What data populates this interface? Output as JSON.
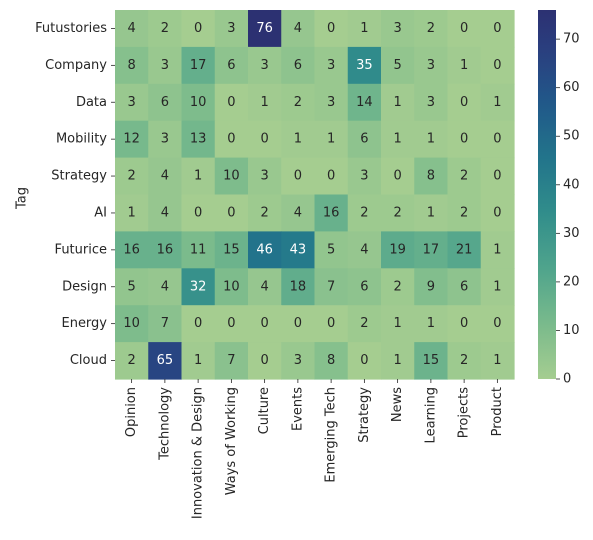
{
  "chart_data": {
    "type": "heatmap",
    "title": "",
    "xlabel": "",
    "ylabel": "Tag",
    "rows": [
      "Futustories",
      "Company",
      "Data",
      "Mobility",
      "Strategy",
      "AI",
      "Futurice",
      "Design",
      "Energy",
      "Cloud"
    ],
    "columns": [
      "Opinion",
      "Technology",
      "Innovation & Design",
      "Ways of Working",
      "Culture",
      "Events",
      "Emerging Tech",
      "Strategy",
      "News",
      "Learning",
      "Projects",
      "Product"
    ],
    "values": [
      [
        4,
        2,
        0,
        3,
        76,
        4,
        0,
        1,
        3,
        2,
        0,
        0
      ],
      [
        8,
        3,
        17,
        6,
        3,
        6,
        3,
        35,
        5,
        3,
        1,
        0
      ],
      [
        3,
        6,
        10,
        0,
        1,
        2,
        3,
        14,
        1,
        3,
        0,
        1
      ],
      [
        12,
        3,
        13,
        0,
        0,
        1,
        1,
        6,
        1,
        1,
        0,
        0
      ],
      [
        2,
        4,
        1,
        10,
        3,
        0,
        0,
        3,
        0,
        8,
        2,
        0
      ],
      [
        1,
        4,
        0,
        0,
        2,
        4,
        16,
        2,
        2,
        1,
        2,
        0
      ],
      [
        16,
        16,
        11,
        15,
        46,
        43,
        5,
        4,
        19,
        17,
        21,
        1
      ],
      [
        5,
        4,
        32,
        10,
        4,
        18,
        7,
        6,
        2,
        9,
        6,
        1
      ],
      [
        10,
        7,
        0,
        0,
        0,
        0,
        0,
        2,
        1,
        1,
        0,
        0
      ],
      [
        2,
        65,
        1,
        7,
        0,
        3,
        8,
        0,
        1,
        15,
        2,
        1
      ]
    ],
    "colorbar": {
      "min": 0,
      "max": 76,
      "ticks": [
        0,
        10,
        20,
        30,
        40,
        50,
        60,
        70
      ]
    },
    "colormap": "crest",
    "colors": {
      "low": "#a5cd90",
      "high": "#2c3172",
      "annotation_light": "#ffffff",
      "annotation_dark": "#262626"
    }
  }
}
